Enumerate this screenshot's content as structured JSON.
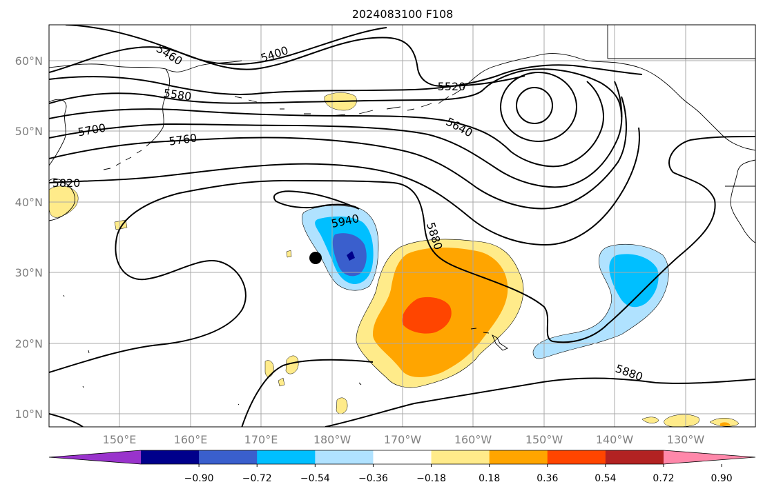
{
  "title": "2024083100 F108",
  "lat_labels": [
    "60°N",
    "50°N",
    "40°N",
    "30°N",
    "20°N",
    "10°N"
  ],
  "lon_labels": [
    "150°E",
    "160°E",
    "170°E",
    "180°W",
    "170°W",
    "160°W",
    "150°W",
    "140°W",
    "130°W"
  ],
  "contour_labels": [
    "5460",
    "5400",
    "5520",
    "5580",
    "5640",
    "5700",
    "5760",
    "5820",
    "5940",
    "5880",
    "5880"
  ],
  "colorbar": {
    "colors": [
      "#9933cc",
      "#00008b",
      "#3a5fcd",
      "#00bfff",
      "#b0e2ff",
      "#ffffff",
      "#ffeb8a",
      "#ffa500",
      "#ff4500",
      "#b22222",
      "#ff88aa"
    ],
    "tick_labels": [
      "−0.90",
      "−0.72",
      "−0.54",
      "−0.36",
      "−0.18",
      "0.18",
      "0.36",
      "0.54",
      "0.72",
      "0.90"
    ]
  },
  "fill_colors": {
    "light_yellow": "#ffeb8a",
    "orange": "#ffa500",
    "red_orange": "#ff4500",
    "light_blue": "#b0e2ff",
    "sky_blue": "#00bfff",
    "royal_blue": "#3a5fcd",
    "navy": "#00008b"
  },
  "marker": "typhoon-center-dot"
}
